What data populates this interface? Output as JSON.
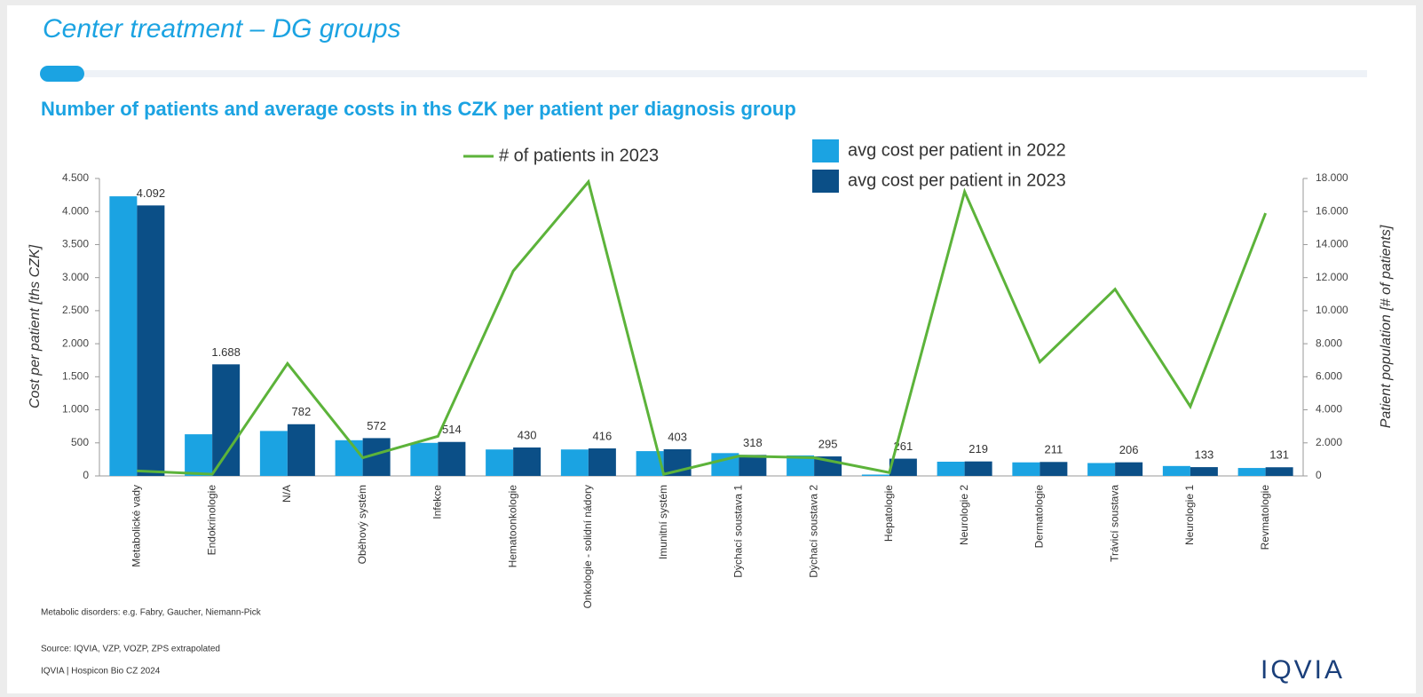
{
  "slide": {
    "title": "Center treatment – DG groups",
    "footnote": "Metabolic disorders: e.g. Fabry, Gaucher, Niemann-Pick",
    "source": "Source: IQVIA, VZP, VOZP, ZPS extrapolated",
    "credit": "IQVIA | Hospicon Bio CZ 2024",
    "logo": "IQVIA"
  },
  "chart_data": {
    "type": "bar",
    "title": "Number of patients and average costs in ths CZK per patient per diagnosis group",
    "y_label": "Cost per patient [ths CZK]",
    "y2_label": "Patient population [# of patients]",
    "categories": [
      "Metabolické vady",
      "Endokrinologie",
      "N/A",
      "Oběhový systém",
      "Infekce",
      "Hematoonkologie",
      "Onkologie - solidní nádory",
      "Imunitní systém",
      "Dýchací soustava 1",
      "Dýchací soustava 2",
      "Hepatologie",
      "Neurologie 2",
      "Dermatologie",
      "Trávicí soustava",
      "Neurologie 1",
      "Revmatologie"
    ],
    "series": [
      {
        "name": "avg cost per patient in 2022",
        "color": "#1ba3e2",
        "values": [
          4230,
          630,
          680,
          540,
          500,
          400,
          400,
          375,
          345,
          310,
          20,
          215,
          205,
          195,
          150,
          120
        ]
      },
      {
        "name": "avg cost per patient in 2023",
        "color": "#0b4f87",
        "values": [
          4092,
          1688,
          782,
          572,
          514,
          430,
          416,
          403,
          318,
          295,
          261,
          219,
          211,
          206,
          133,
          131
        ],
        "value_labels": [
          "4.092",
          "1.688",
          "782",
          "572",
          "514",
          "430",
          "416",
          "403",
          "318",
          "295",
          "261",
          "219",
          "211",
          "206",
          "133",
          "131"
        ]
      },
      {
        "name": "# of patients in 2023",
        "color": "#5cb33a",
        "type": "line",
        "axis": "y2",
        "values": [
          300,
          100,
          6800,
          1100,
          2400,
          12400,
          17800,
          100,
          1200,
          1100,
          200,
          17200,
          6900,
          11300,
          4200,
          15900
        ]
      }
    ],
    "ylim": [
      0,
      4500
    ],
    "yticks": [
      0,
      {
        "value": 500,
        "label": "500"
      },
      {
        "value": 1000,
        "label": "1.000"
      },
      {
        "value": 1500,
        "label": "1.500"
      },
      {
        "value": 2000,
        "label": "2.000"
      },
      {
        "value": 2500,
        "label": "2.500"
      },
      {
        "value": 3000,
        "label": "3.000"
      },
      {
        "value": 3500,
        "label": "3.500"
      },
      {
        "value": 4000,
        "label": "4.000"
      },
      {
        "value": 4500,
        "label": "4.500"
      }
    ],
    "y2lim": [
      0,
      18000
    ],
    "y2ticks": [
      0,
      {
        "value": 2000,
        "label": "2.000"
      },
      {
        "value": 4000,
        "label": "4.000"
      },
      {
        "value": 6000,
        "label": "6.000"
      },
      {
        "value": 8000,
        "label": "8.000"
      },
      {
        "value": 10000,
        "label": "10.000"
      },
      {
        "value": 12000,
        "label": "12.000"
      },
      {
        "value": 14000,
        "label": "14.000"
      },
      {
        "value": 16000,
        "label": "16.000"
      },
      {
        "value": 18000,
        "label": "18.000"
      }
    ],
    "grid": false
  }
}
